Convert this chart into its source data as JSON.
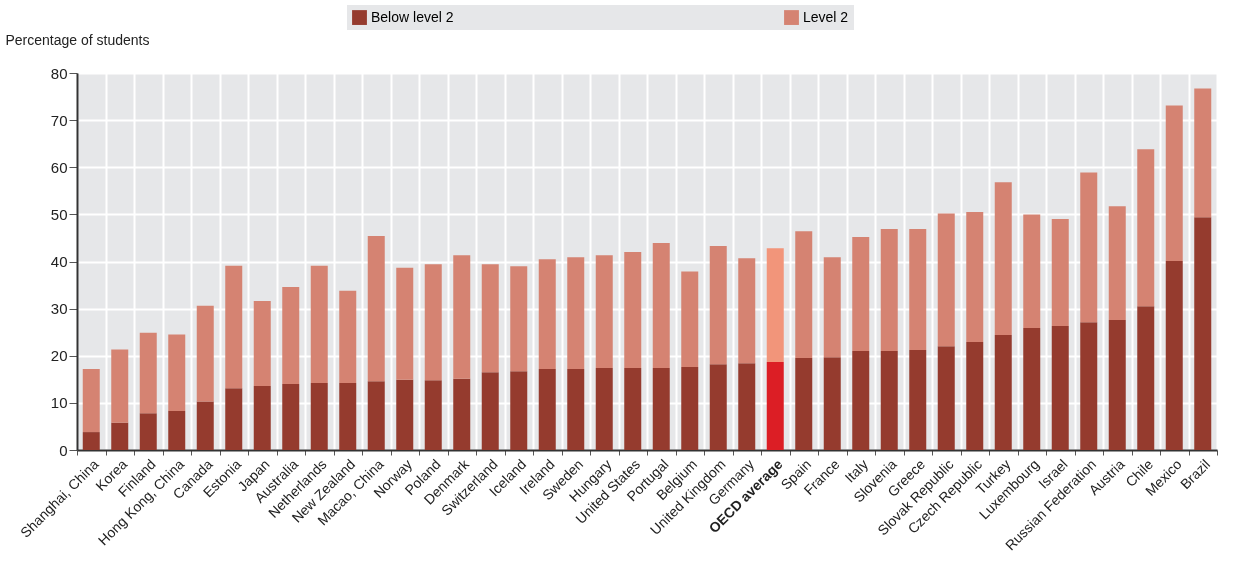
{
  "chart_data": {
    "type": "bar",
    "stacked": true,
    "ylabel": "Percentage of students",
    "ylim": [
      0,
      80
    ],
    "yticks": [
      0,
      10,
      20,
      30,
      40,
      50,
      60,
      70,
      80
    ],
    "grid": true,
    "legend": "top",
    "categories": [
      "Shanghai, China",
      "Korea",
      "Finland",
      "Hong Kong, China",
      "Canada",
      "Estonia",
      "Japan",
      "Australia",
      "Netherlands",
      "New Zealand",
      "Macao, China",
      "Norway",
      "Poland",
      "Denmark",
      "Switzerland",
      "Iceland",
      "Ireland",
      "Sweden",
      "Hungary",
      "United States",
      "Portugal",
      "Belgium",
      "United Kingdom",
      "Germany",
      "OECD average",
      "Spain",
      "France",
      "Italy",
      "Slovenia",
      "Greece",
      "Slovak Republic",
      "Czech Republic",
      "Turkey",
      "Luxembourg",
      "Israel",
      "Russian Federation",
      "Austria",
      "Chile",
      "Mexico",
      "Brazil"
    ],
    "series": [
      {
        "name": "Below level 2",
        "color": "#953b2e",
        "colors": [
          "#953b2e",
          "#953b2e",
          "#953b2e",
          "#953b2e",
          "#953b2e",
          "#953b2e",
          "#953b2e",
          "#953b2e",
          "#953b2e",
          "#953b2e",
          "#953b2e",
          "#953b2e",
          "#953b2e",
          "#953b2e",
          "#953b2e",
          "#953b2e",
          "#953b2e",
          "#953b2e",
          "#953b2e",
          "#953b2e",
          "#953b2e",
          "#953b2e",
          "#953b2e",
          "#953b2e",
          "#dc1e25",
          "#953b2e",
          "#953b2e",
          "#953b2e",
          "#953b2e",
          "#953b2e",
          "#953b2e",
          "#953b2e",
          "#953b2e",
          "#953b2e",
          "#953b2e",
          "#953b2e",
          "#953b2e",
          "#953b2e",
          "#953b2e",
          "#953b2e"
        ],
        "values": [
          3.8,
          5.8,
          7.8,
          8.3,
          10.3,
          13.1,
          13.6,
          14.0,
          14.2,
          14.2,
          14.6,
          14.9,
          14.8,
          15.1,
          16.5,
          16.7,
          17.2,
          17.2,
          17.4,
          17.4,
          17.4,
          17.6,
          18.2,
          18.4,
          18.7,
          19.5,
          19.7,
          21.0,
          21.0,
          21.2,
          22.0,
          22.9,
          24.4,
          25.9,
          26.3,
          27.1,
          27.6,
          30.5,
          40.1,
          49.4
        ]
      },
      {
        "name": "Level 2",
        "color": "#d58372",
        "colors": [
          "#d58372",
          "#d58372",
          "#d58372",
          "#d58372",
          "#d58372",
          "#d58372",
          "#d58372",
          "#d58372",
          "#d58372",
          "#d58372",
          "#d58372",
          "#d58372",
          "#d58372",
          "#d58372",
          "#d58372",
          "#d58372",
          "#d58372",
          "#d58372",
          "#d58372",
          "#d58372",
          "#d58372",
          "#d58372",
          "#d58372",
          "#d58372",
          "#f2957a",
          "#d58372",
          "#d58372",
          "#d58372",
          "#d58372",
          "#d58372",
          "#d58372",
          "#d58372",
          "#d58372",
          "#d58372",
          "#d58372",
          "#d58372",
          "#d58372",
          "#d58372",
          "#d58372",
          "#d58372"
        ],
        "values": [
          13.4,
          15.5,
          17.1,
          16.2,
          20.3,
          26.0,
          18.0,
          20.6,
          24.9,
          19.6,
          30.8,
          23.8,
          24.6,
          26.2,
          22.9,
          22.3,
          23.3,
          23.7,
          23.9,
          24.6,
          26.5,
          20.3,
          25.1,
          22.3,
          24.1,
          26.9,
          21.2,
          24.2,
          25.9,
          25.7,
          28.2,
          27.6,
          32.4,
          24.1,
          22.7,
          31.8,
          24.1,
          33.3,
          33.0,
          27.3
        ]
      }
    ]
  }
}
